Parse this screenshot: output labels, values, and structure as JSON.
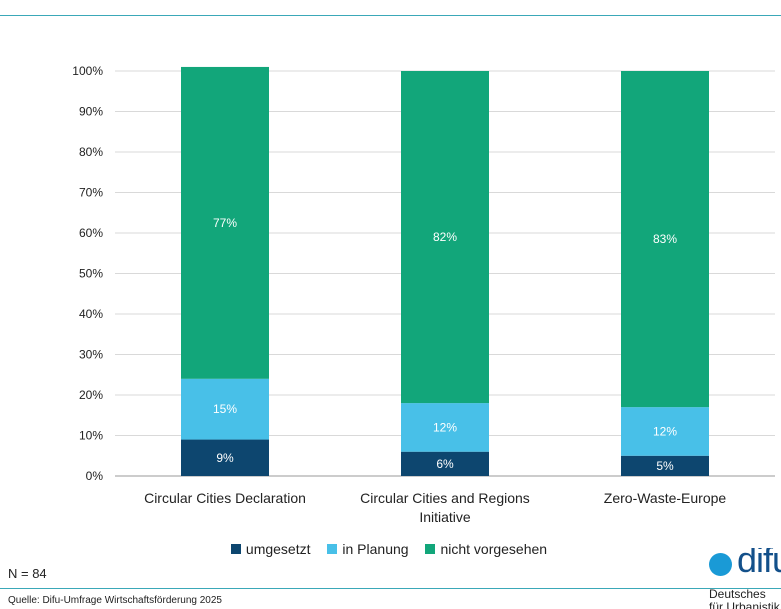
{
  "chart_data": {
    "type": "bar",
    "stacked": true,
    "categories": [
      [
        "Circular Cities Declaration"
      ],
      [
        "Circular Cities and Regions",
        "Initiative"
      ],
      [
        "Zero-Waste-Europe"
      ]
    ],
    "series": [
      {
        "name": "umgesetzt",
        "color": "#0d466f",
        "values": [
          9,
          6,
          5
        ],
        "labels": [
          "9%",
          "6%",
          "5%"
        ]
      },
      {
        "name": "in Planung",
        "color": "#48c0e8",
        "values": [
          15,
          12,
          12
        ],
        "labels": [
          "15%",
          "12%",
          "12%"
        ]
      },
      {
        "name": "nicht vorgesehen",
        "color": "#12a67a",
        "values": [
          77,
          82,
          83
        ],
        "labels": [
          "77%",
          "82%",
          "83%"
        ]
      }
    ],
    "ylim": [
      0,
      100
    ],
    "y_ticks": [
      "0%",
      "10%",
      "20%",
      "30%",
      "40%",
      "50%",
      "60%",
      "70%",
      "80%",
      "90%",
      "100%"
    ],
    "grid": true,
    "legend_position": "bottom-center"
  },
  "footer": {
    "sample_size": "N = 84",
    "source": "Quelle: Difu-Umfrage Wirtschaftsförderung 2025"
  },
  "logo": {
    "wordmark": "difu",
    "subtitle": "Deutsches",
    "subtitle2": "für Urbanistik"
  }
}
